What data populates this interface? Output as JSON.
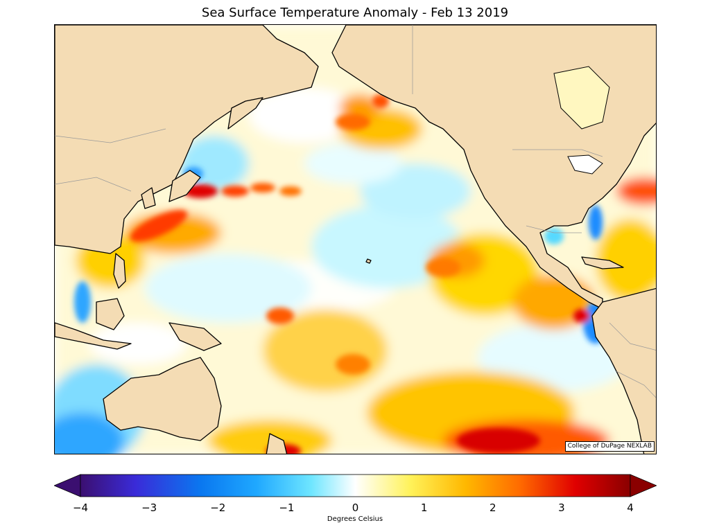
{
  "title": "Sea Surface Temperature Anomaly - Feb 13 2019",
  "credit": "College of DuPage NEXLAB",
  "colorbar": {
    "label": "Degrees Celsius",
    "ticks": [
      "−4",
      "−3",
      "−2",
      "−1",
      "0",
      "1",
      "2",
      "3",
      "4"
    ],
    "min": -4,
    "max": 4,
    "stops": [
      "#3b0f70",
      "#3a2bd8",
      "#0a78f0",
      "#1fa8ff",
      "#6fe6ff",
      "#ffffff",
      "#fff25a",
      "#ffb800",
      "#ff6a00",
      "#e00000",
      "#8a0000"
    ]
  },
  "colors": {
    "land": "#f4dcb4",
    "coast": "#000000",
    "warm": "#ffcc00",
    "hot": "#ff3000",
    "cool": "#8ff0ff",
    "cold": "#1aa0ff"
  }
}
